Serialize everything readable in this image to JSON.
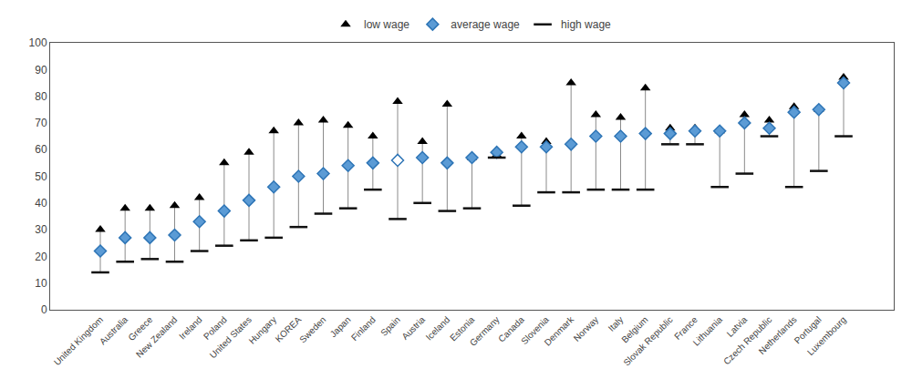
{
  "chart_data": {
    "type": "scatter",
    "categories": [
      "United Kingdom",
      "Australia",
      "Greece",
      "New Zealand",
      "Ireland",
      "Poland",
      "United States",
      "Hungary",
      "KOREA",
      "Sweden",
      "Japan",
      "Finland",
      "Spain",
      "Austria",
      "Iceland",
      "Estonia",
      "Germany",
      "Canada",
      "Slovenia",
      "Denmark",
      "Norway",
      "Italy",
      "Belgium",
      "Slovak Republic",
      "France",
      "Lithuania",
      "Latvia",
      "Czech Republic",
      "Netherlands",
      "Portugal",
      "Luxembourg"
    ],
    "series": [
      {
        "name": "low wage",
        "color": "#000000",
        "marker": "triangle-up",
        "values": [
          30,
          38,
          38,
          39,
          42,
          55,
          59,
          67,
          70,
          71,
          69,
          65,
          78,
          63,
          77,
          57,
          58,
          65,
          63,
          85,
          73,
          72,
          83,
          68,
          68,
          67,
          73,
          71,
          76,
          75,
          87
        ]
      },
      {
        "name": "average wage",
        "color": "#2e75b6",
        "marker": "diamond",
        "colors": [
          "#5b9bd5",
          "#5b9bd5",
          "#5b9bd5",
          "#5b9bd5",
          "#5b9bd5",
          "#5b9bd5",
          "#5b9bd5",
          "#5b9bd5",
          "#5b9bd5",
          "#5b9bd5",
          "#5b9bd5",
          "#5b9bd5",
          "#ffffff",
          "#5b9bd5",
          "#5b9bd5",
          "#5b9bd5",
          "#5b9bd5",
          "#5b9bd5",
          "#5b9bd5",
          "#5b9bd5",
          "#5b9bd5",
          "#5b9bd5",
          "#5b9bd5",
          "#5b9bd5",
          "#5b9bd5",
          "#5b9bd5",
          "#5b9bd5",
          "#5b9bd5",
          "#5b9bd5",
          "#5b9bd5",
          "#5b9bd5"
        ],
        "values": [
          22,
          27,
          27,
          28,
          33,
          37,
          41,
          46,
          50,
          51,
          54,
          55,
          56,
          57,
          55,
          57,
          59,
          61,
          61,
          62,
          65,
          65,
          66,
          66,
          67,
          67,
          70,
          68,
          74,
          75,
          85
        ]
      },
      {
        "name": "high wage",
        "color": "#111111",
        "marker": "line-ew",
        "values": [
          14,
          18,
          19,
          18,
          22,
          24,
          26,
          27,
          31,
          36,
          38,
          45,
          34,
          40,
          37,
          38,
          57,
          39,
          44,
          44,
          45,
          45,
          45,
          62,
          62,
          46,
          51,
          65,
          46,
          52,
          65
        ]
      }
    ],
    "ylim": [
      0,
      100
    ],
    "yticks": [
      0,
      10,
      20,
      30,
      40,
      50,
      60,
      70,
      80,
      90,
      100
    ],
    "grid": false,
    "legend": "top"
  }
}
